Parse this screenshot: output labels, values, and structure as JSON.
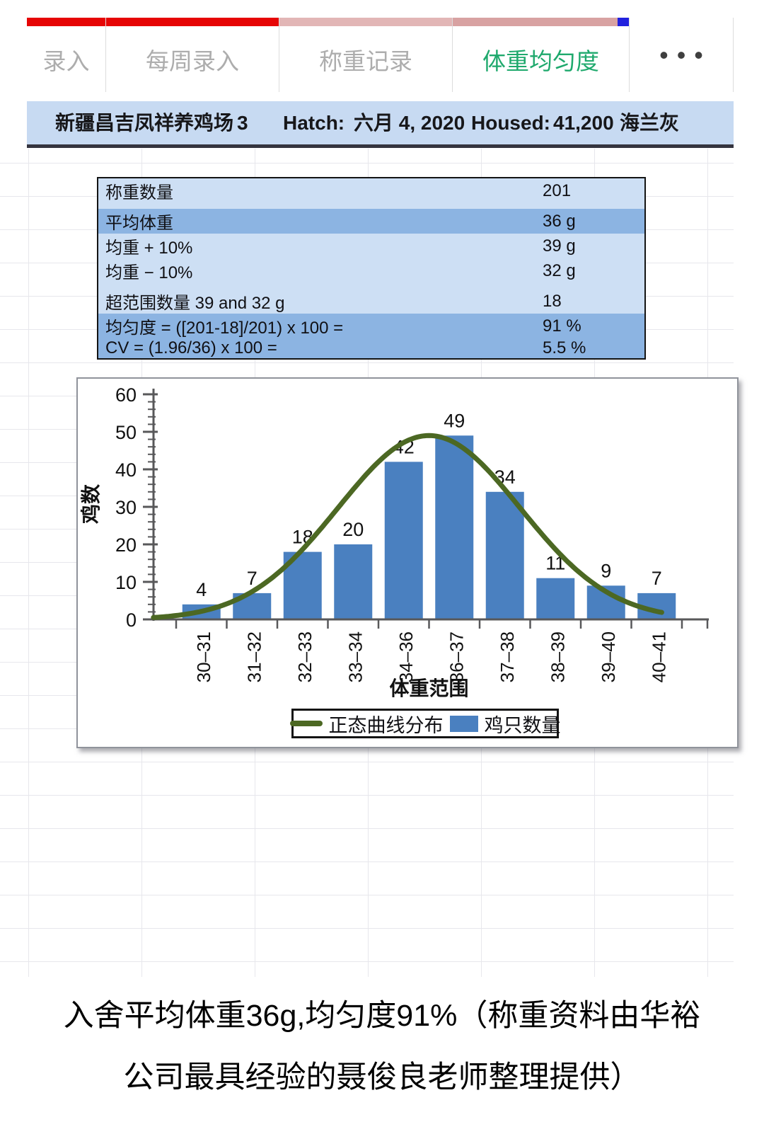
{
  "tabs": {
    "items": [
      {
        "label": "录入",
        "active": false,
        "strip_color": "#e60505"
      },
      {
        "label": "每周录入",
        "active": false,
        "strip_color": "#e60505"
      },
      {
        "label": "称重记录",
        "active": false,
        "strip_color": "#e2b6b6"
      },
      {
        "label": "体重均匀度",
        "active": true,
        "strip_color": "#d8a2a2",
        "end_cap_color": "#2121de"
      }
    ],
    "more_icon": "•••"
  },
  "header": {
    "farm": "新疆昌吉凤祥养鸡场",
    "flock": "3",
    "hatch_label": "Hatch:",
    "hatch_value": "六月 4, 2020",
    "housed_label": "Housed:",
    "housed_value": "41,200",
    "breed": "海兰灰"
  },
  "summary_table": {
    "rows": [
      {
        "label": "称重数量",
        "value": "201",
        "highlight": false
      },
      {
        "label": "",
        "value": "",
        "highlight": false
      },
      {
        "label": "平均体重",
        "value": "36 g",
        "highlight": true
      },
      {
        "label": "均重 + 10%",
        "value": "39 g",
        "highlight": false
      },
      {
        "label": "均重 − 10%",
        "value": "32 g",
        "highlight": false
      },
      {
        "label": "",
        "value": "",
        "highlight": false
      },
      {
        "label": "超范围数量 39 and 32 g",
        "value": "18",
        "highlight": false
      },
      {
        "label": "均匀度 = ([201-18]/201) x 100 =",
        "value": "91 %",
        "highlight": true
      },
      {
        "label": "CV = (1.96/36) x 100 =",
        "value": "5.5 %",
        "highlight": true
      }
    ]
  },
  "chart_data": {
    "type": "bar",
    "categories": [
      "30–31",
      "31–32",
      "32–33",
      "33–34",
      "34–36",
      "36–37",
      "37–38",
      "38–39",
      "39–40",
      "40–41"
    ],
    "series": [
      {
        "name": "鸡只数量",
        "type": "bar",
        "values": [
          4,
          7,
          18,
          20,
          42,
          49,
          34,
          11,
          9,
          7
        ],
        "color": "#4a80c0"
      },
      {
        "name": "正态曲线分布",
        "type": "line",
        "color": "#4c6823",
        "curve": {
          "shape": "gaussian",
          "amplitude": 49,
          "mean_index": 4.5,
          "sigma": 1.8
        }
      }
    ],
    "xlabel": "体重范围",
    "ylabel": "鸡数",
    "ylim": [
      0,
      60
    ],
    "y_major_step": 10,
    "y_minor_step": 2,
    "data_labels": [
      4,
      7,
      18,
      20,
      42,
      49,
      34,
      11,
      9,
      7
    ],
    "legend_position": "bottom-inside",
    "grid": false
  },
  "caption": {
    "line1": "入舍平均体重36g,均匀度91%（称重资料由华裕",
    "line2": "公司最具经验的聂俊良老师整理提供）"
  },
  "colors": {
    "active_tab": "#1fa96d",
    "inactive_tab": "#adadad",
    "tab_strip_red": "#e60505",
    "tab_strip_pink": "#e2b6b6",
    "tab_strip_rose": "#d8a2a2",
    "tab_end_cap_blue": "#2121de",
    "header_row_bg": "#c7daf2",
    "table_bg": "#cddff4",
    "table_highlight_bg": "#8cb4e2",
    "bar_fill": "#4a80c0",
    "curve_stroke": "#4c6823",
    "axis": "#58585a",
    "grid_line": "#e7e7ec"
  }
}
